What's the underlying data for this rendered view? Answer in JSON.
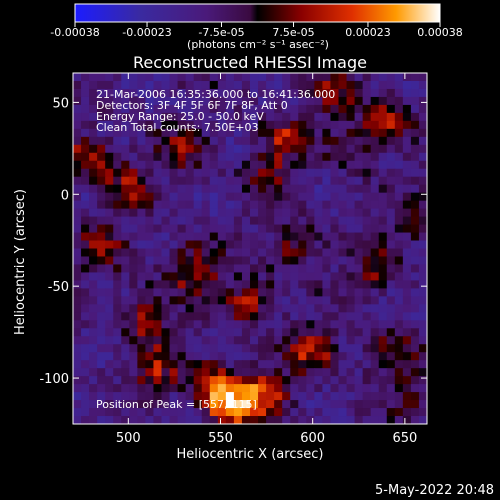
{
  "chart_data": {
    "type": "heatmap",
    "title": "Reconstructed RHESSI Image",
    "xlabel": "Heliocentric X (arcsec)",
    "ylabel": "Heliocentric Y (arcsec)",
    "xlim": [
      470,
      662
    ],
    "ylim": [
      -125,
      66
    ],
    "x_ticks": [
      500,
      550,
      600,
      650
    ],
    "y_ticks": [
      50,
      0,
      -50,
      -100
    ],
    "colorbar": {
      "colormap": "hot",
      "range": [
        -0.00038,
        0.00038
      ],
      "tick_values": [
        -0.00038,
        -0.00023,
        -7.5e-05,
        7.5e-05,
        0.00023,
        0.00038
      ],
      "tick_labels": [
        "-0.00038",
        "-0.00023",
        "-7.5e-05",
        "7.5e-05",
        "0.00023",
        "0.00038"
      ],
      "unit_label": "(photons cm⁻² s⁻¹ asec⁻²)"
    },
    "annotations": [
      "21-Mar-2006 16:35:36.000 to 16:41:36.000",
      "Detectors: 3F 4F 5F 6F 7F 8F, Att 0",
      "Energy Range: 25.0 - 50.0 keV",
      "Clean     Total counts: 7.50E+03"
    ],
    "peak_label": "Position of Peak = [557,-115]",
    "peak": {
      "x": 557,
      "y": -115
    },
    "grid": false,
    "hot_spots": [
      {
        "x": 557,
        "y": -115,
        "value": 0.00038
      },
      {
        "x": 545,
        "y": -105,
        "value": 0.0003
      },
      {
        "x": 575,
        "y": -108,
        "value": 0.00028
      },
      {
        "x": 515,
        "y": -95,
        "value": 0.00022
      },
      {
        "x": 510,
        "y": -65,
        "value": 0.00024
      },
      {
        "x": 535,
        "y": -40,
        "value": 0.00026
      },
      {
        "x": 565,
        "y": -58,
        "value": 0.00027
      },
      {
        "x": 590,
        "y": -28,
        "value": 0.00022
      },
      {
        "x": 600,
        "y": -85,
        "value": 0.00024
      },
      {
        "x": 640,
        "y": -85,
        "value": 0.0002
      },
      {
        "x": 635,
        "y": -40,
        "value": 0.00018
      },
      {
        "x": 658,
        "y": -15,
        "value": 0.00016
      },
      {
        "x": 480,
        "y": 20,
        "value": 0.00024
      },
      {
        "x": 500,
        "y": 5,
        "value": 0.0002
      },
      {
        "x": 530,
        "y": 25,
        "value": 0.00016
      },
      {
        "x": 585,
        "y": 30,
        "value": 0.0002
      },
      {
        "x": 620,
        "y": 25,
        "value": 0.00016
      },
      {
        "x": 640,
        "y": 40,
        "value": 0.00024
      },
      {
        "x": 610,
        "y": 55,
        "value": 0.00018
      },
      {
        "x": 575,
        "y": 10,
        "value": 0.00014
      },
      {
        "x": 485,
        "y": -30,
        "value": 0.00016
      },
      {
        "x": 655,
        "y": -110,
        "value": 0.00012
      }
    ]
  },
  "footer": {
    "date": "5-May-2022 20:48"
  }
}
